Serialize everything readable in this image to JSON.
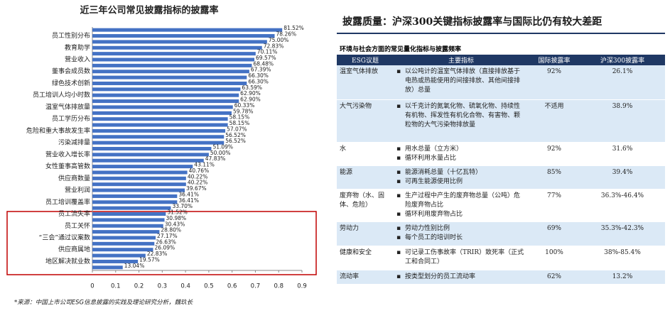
{
  "chart_data": {
    "type": "bar",
    "orientation": "horizontal",
    "title": "近三年公司常见披露指标的披露率",
    "categories": [
      null,
      "员工性别分布",
      null,
      "教育助学",
      null,
      "营业收入",
      null,
      "董事会成员数",
      null,
      "绿色技术创新",
      null,
      "员工培训人均小时数",
      null,
      "温室气体排放量",
      null,
      "员工学历分布",
      null,
      "危险和重大事故发生率",
      null,
      "污染减排量",
      null,
      "营业收入增长率",
      null,
      "女性董事高管数",
      null,
      "供应商数量",
      null,
      "营业利润",
      null,
      "员工培训覆盖率",
      null,
      "员工流失率",
      null,
      "员工关怀",
      null,
      "“三会”通过议案数",
      null,
      "供应商属地",
      null,
      "地区解决就业数",
      null
    ],
    "values": [
      0.8152,
      0.7826,
      0.75,
      0.7283,
      0.7011,
      0.6957,
      0.6848,
      0.6739,
      0.663,
      0.663,
      0.6359,
      0.629,
      0.629,
      0.6033,
      0.5978,
      0.5815,
      0.5815,
      0.5707,
      0.5652,
      0.5652,
      0.5109,
      0.5,
      0.4783,
      0.4311,
      0.4076,
      0.4022,
      0.4022,
      0.3967,
      0.3641,
      0.3641,
      0.337,
      0.3152,
      0.3098,
      0.3043,
      0.288,
      0.2717,
      0.2663,
      0.2609,
      0.2283,
      0.1957,
      0.1304
    ],
    "value_labels": [
      "81.52%",
      "78.26%",
      "75.00%",
      "72.83%",
      "70.11%",
      "69.57%",
      "68.48%",
      "67.39%",
      "66.30%",
      "66.30%",
      "63.59%",
      "62.90%",
      "62.90%",
      "60.33%",
      "59.78%",
      "58.15%",
      "58.15%",
      "57.07%",
      "56.52%",
      "56.52%",
      "51.09%",
      "50.00%",
      "47.83%",
      "43.11%",
      "40.76%",
      "40.22%",
      "40.22%",
      "39.67%",
      "36.41%",
      "36.41%",
      "33.70%",
      "31.52%",
      "30.98%",
      "30.43%",
      "28.80%",
      "27.17%",
      "26.63%",
      "26.09%",
      "22.83%",
      "19.57%",
      "13.04%"
    ],
    "color": "#4472c4",
    "xlim": [
      0,
      0.9
    ],
    "xticks": [
      0,
      0.1,
      0.2,
      0.3,
      0.4,
      0.5,
      0.6,
      0.7,
      0.8,
      0.9
    ],
    "source": "*来源：中国上市公司ESG信息披露的实践及理论研究分析，魏玖长"
  },
  "table": {
    "title": "披露质量：沪深300关键指标披露率与国际比仍有较大差距",
    "subtitle": "环境与社会方面的常见量化指标与披露频率",
    "headers": [
      "ESG议题",
      "主要指标",
      "国际披露率",
      "沪深300披露率"
    ],
    "rows": [
      [
        "温室气体排放",
        [
          "以公吨计的温室气体排放（直接排放基于电热或热能使用的间接排放、其他间接排放）总量"
        ],
        "92%",
        "26.1%"
      ],
      [
        "大气污染物",
        [
          "以千克计的氮氧化物、硫氧化物、持续性有机物、挥发性有机化合物、有害物、颗粒物的大气污染物排放量"
        ],
        "不适用",
        "38.9%"
      ],
      [
        "水",
        [
          "用水总量（立方米）",
          "循环利用水量占比"
        ],
        "92%",
        "31.6%"
      ],
      [
        "能源",
        [
          "能源消耗总量（十亿瓦特）",
          "可再生能源使用比例"
        ],
        "85%",
        "39.4%"
      ],
      [
        "废弃物（水、固体、危险）",
        [
          "生产过程中产生的废弃物总量（公吨）危险废弃物占比",
          "循环利用废弃物占比"
        ],
        "77%",
        "36.3%-46.4%"
      ],
      [
        "劳动力",
        [
          "劳动力性别比例",
          "每个员工的培训时长"
        ],
        "69%",
        "35.3%-42.3%"
      ],
      [
        "健康和安全",
        [
          "可记录工伤事故率（TRIR）致死率（正式工和合同工）"
        ],
        "100%",
        "38%-85.4%"
      ],
      [
        "流动率",
        [
          "按类型划分的员工流动率"
        ],
        "62%",
        "13.2%"
      ]
    ]
  }
}
